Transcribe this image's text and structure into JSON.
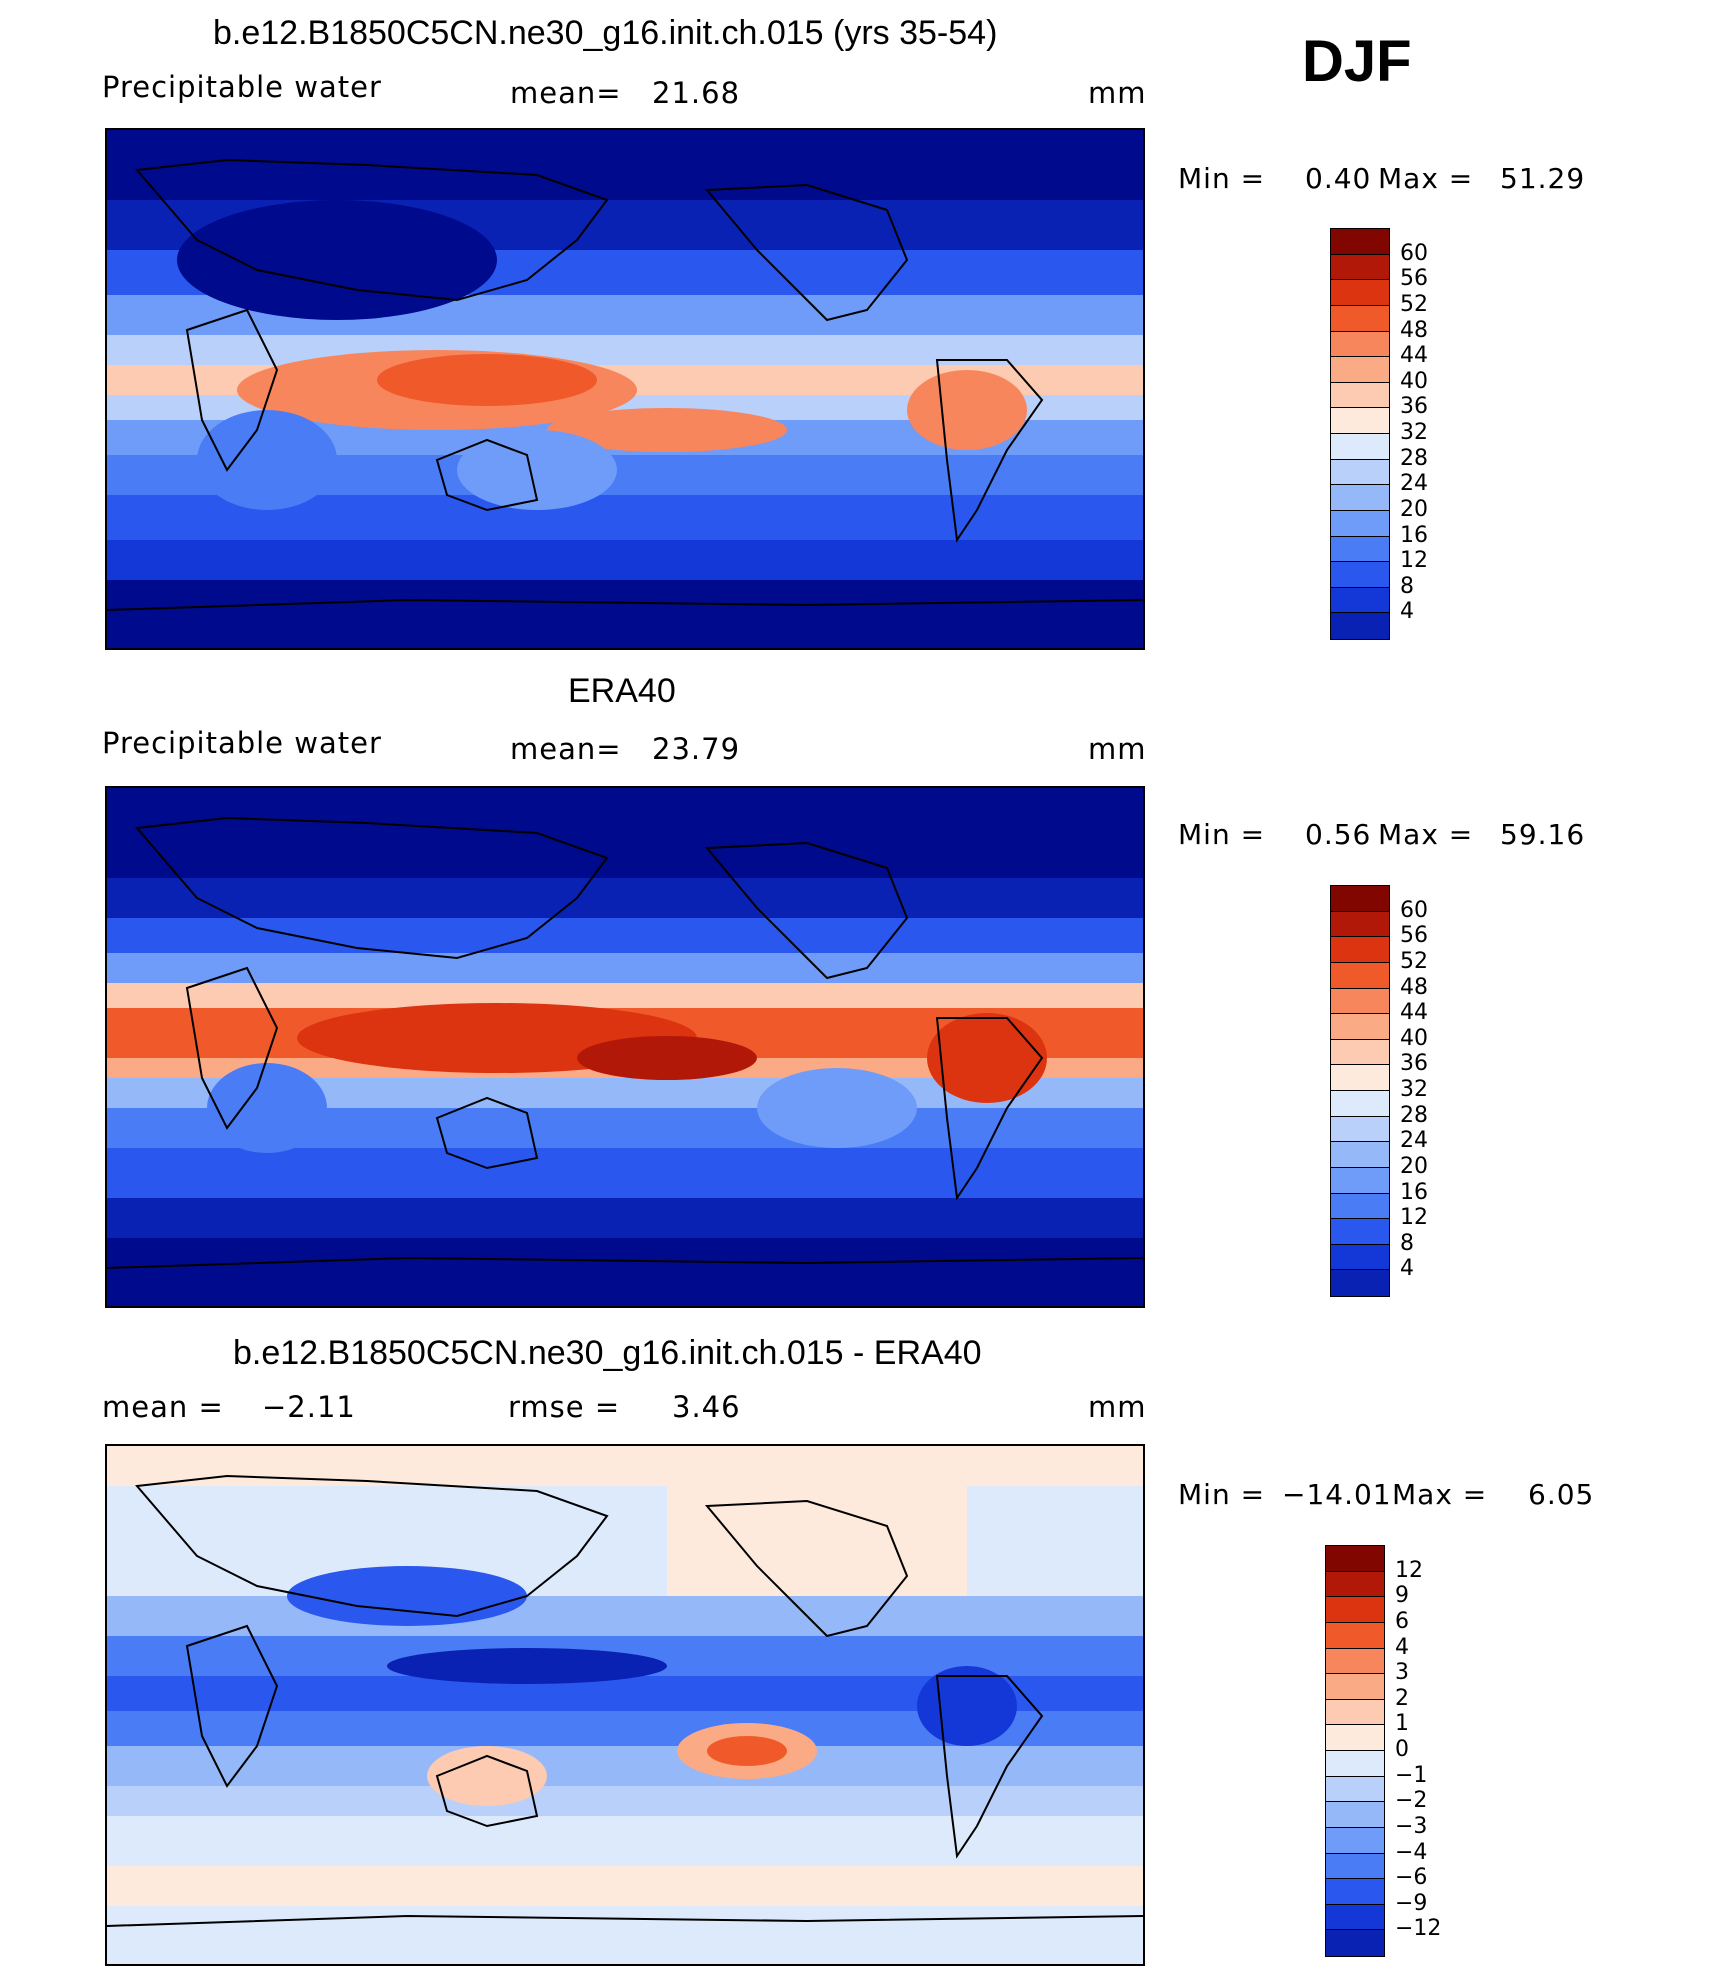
{
  "season": "DJF",
  "colors": {
    "pw": [
      "#000a8c",
      "#0a22b4",
      "#1438d8",
      "#2a58ef",
      "#4a7cf5",
      "#6e9cf8",
      "#95b8f9",
      "#b9d1fa",
      "#ddeafc",
      "#fdeadc",
      "#fccbb2",
      "#fbaa86",
      "#f8865c",
      "#f05a2a",
      "#dc3410",
      "#b21808",
      "#820600"
    ],
    "diff": [
      "#000a8c",
      "#0a22b4",
      "#1438d8",
      "#2a58ef",
      "#4a7cf5",
      "#6e9cf8",
      "#95b8f9",
      "#b9d1fa",
      "#ddeafc",
      "#fdeadc",
      "#fccbb2",
      "#fbaa86",
      "#f8865c",
      "#f05a2a",
      "#dc3410",
      "#b21808",
      "#820600"
    ]
  },
  "chart_data": [
    {
      "type": "heatmap",
      "title": "b.e12.B1850C5CN.ne30_g16.init.ch.015 (yrs 35-54)",
      "subtitle_left": "Precipitable water",
      "mean_label": "mean=",
      "mean_value": "21.68",
      "units": "mm",
      "min_label": "Min =",
      "min_value": "0.40",
      "max_label": "Max =",
      "max_value": "51.29",
      "colorbar_levels": [
        "60",
        "56",
        "52",
        "48",
        "44",
        "40",
        "36",
        "32",
        "28",
        "24",
        "20",
        "16",
        "12",
        "8",
        "4"
      ]
    },
    {
      "type": "heatmap",
      "title": "ERA40",
      "subtitle_left": "Precipitable water",
      "mean_label": "mean=",
      "mean_value": "23.79",
      "units": "mm",
      "min_label": "Min =",
      "min_value": "0.56",
      "max_label": "Max =",
      "max_value": "59.16",
      "colorbar_levels": [
        "60",
        "56",
        "52",
        "48",
        "44",
        "40",
        "36",
        "32",
        "28",
        "24",
        "20",
        "16",
        "12",
        "8",
        "4"
      ]
    },
    {
      "type": "heatmap",
      "title": "b.e12.B1850C5CN.ne30_g16.init.ch.015 - ERA40",
      "mean_label": "mean =",
      "mean_value": "−2.11",
      "rmse_label": "rmse =",
      "rmse_value": "3.46",
      "units": "mm",
      "min_label": "Min =",
      "min_value": "−14.01",
      "max_label": "Max =",
      "max_value": "6.05",
      "colorbar_levels": [
        "12",
        "9",
        "6",
        "4",
        "3",
        "2",
        "1",
        "0",
        "−1",
        "−2",
        "−3",
        "−4",
        "−6",
        "−9",
        "−12"
      ]
    }
  ]
}
